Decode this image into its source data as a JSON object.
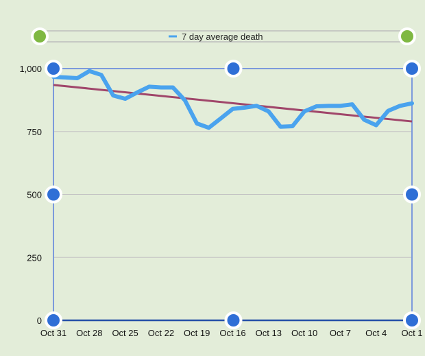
{
  "chart_data": {
    "type": "line",
    "title": "",
    "xlabel": "",
    "ylabel": "",
    "ylim": [
      0,
      1000
    ],
    "yticks": [
      "0",
      "250",
      "500",
      "750",
      "1,000"
    ],
    "ytick_values": [
      0,
      250,
      500,
      750,
      1000
    ],
    "xtick_labels": [
      "Oct 31",
      "Oct 28",
      "Oct 25",
      "Oct 22",
      "Oct 19",
      "Oct 16",
      "Oct 13",
      "Oct 10",
      "Oct 7",
      "Oct 4",
      "Oct 1"
    ],
    "grid": true,
    "legend": {
      "position": "top-center",
      "entries": [
        "7 day average  death"
      ]
    },
    "x": [
      "Oct 31",
      "Oct 30",
      "Oct 29",
      "Oct 28",
      "Oct 27",
      "Oct 26",
      "Oct 25",
      "Oct 24",
      "Oct 23",
      "Oct 22",
      "Oct 21",
      "Oct 20",
      "Oct 19",
      "Oct 18",
      "Oct 17",
      "Oct 16",
      "Oct 15",
      "Oct 14",
      "Oct 13",
      "Oct 12",
      "Oct 11",
      "Oct 10",
      "Oct 9",
      "Oct 8",
      "Oct 7",
      "Oct 6",
      "Oct 5",
      "Oct 4",
      "Oct 3",
      "Oct 2",
      "Oct 1"
    ],
    "series": [
      {
        "name": "7 day average  death",
        "color": "#4aa3ee",
        "values": [
          967,
          965,
          962,
          990,
          975,
          893,
          880,
          905,
          928,
          925,
          925,
          874,
          782,
          765,
          802,
          840,
          845,
          852,
          830,
          769,
          771,
          830,
          850,
          852,
          852,
          858,
          797,
          775,
          832,
          852,
          862
        ]
      }
    ],
    "trendline": {
      "color": "#a0466a",
      "start": 935,
      "end": 790
    },
    "colors": {
      "background": "#e3edd9",
      "frame": "#7c9adc",
      "handle_blue": "#2f6fd6",
      "handle_green": "#7fb842",
      "grid": "#c4c4c4"
    }
  }
}
